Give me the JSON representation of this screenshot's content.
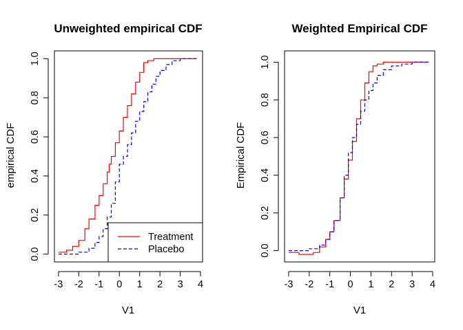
{
  "chart_data": [
    {
      "type": "line",
      "subtype": "step",
      "title": "Unweighted empirical CDF",
      "xlabel": "V1",
      "ylabel": "empirical CDF",
      "xlim": [
        -3.2,
        4.1
      ],
      "ylim": [
        -0.04,
        1.04
      ],
      "x_ticks": [
        "-3",
        "-2",
        "-1",
        "0",
        "1",
        "2",
        "3",
        "4"
      ],
      "y_ticks": [
        "0.0",
        "0.2",
        "0.4",
        "0.6",
        "0.8",
        "1.0"
      ],
      "grid": false,
      "legend": {
        "placement": "bottom-right",
        "entries": [
          {
            "label": "Treatment",
            "color": "#ff0000",
            "dash": "solid"
          },
          {
            "label": "Placebo",
            "color": "#0000ff",
            "dash": "dashed"
          }
        ]
      },
      "series": [
        {
          "name": "Treatment",
          "color": "#ff0000",
          "dash": "solid",
          "x": [
            -3.0,
            -2.6,
            -2.3,
            -2.0,
            -1.7,
            -1.5,
            -1.2,
            -1.0,
            -0.8,
            -0.6,
            -0.5,
            -0.4,
            -0.2,
            0.0,
            0.2,
            0.4,
            0.6,
            0.8,
            1.0,
            1.2,
            1.4,
            1.7,
            2.0,
            3.0,
            3.8
          ],
          "y": [
            0.01,
            0.02,
            0.04,
            0.07,
            0.13,
            0.18,
            0.25,
            0.3,
            0.36,
            0.42,
            0.46,
            0.5,
            0.57,
            0.63,
            0.7,
            0.76,
            0.82,
            0.88,
            0.93,
            0.98,
            0.99,
            1.0,
            1.0,
            1.0,
            1.0
          ]
        },
        {
          "name": "Placebo",
          "color": "#0000ff",
          "dash": "dashed",
          "x": [
            -3.0,
            -2.0,
            -1.5,
            -1.2,
            -1.0,
            -0.8,
            -0.6,
            -0.4,
            -0.2,
            0.0,
            0.2,
            0.4,
            0.6,
            0.8,
            1.0,
            1.2,
            1.4,
            1.6,
            1.8,
            2.0,
            2.3,
            2.6,
            3.0,
            3.5,
            3.8
          ],
          "y": [
            0.0,
            0.01,
            0.03,
            0.06,
            0.09,
            0.13,
            0.19,
            0.26,
            0.37,
            0.46,
            0.5,
            0.56,
            0.62,
            0.68,
            0.73,
            0.78,
            0.83,
            0.87,
            0.91,
            0.94,
            0.97,
            0.99,
            1.0,
            1.0,
            1.0
          ]
        }
      ]
    },
    {
      "type": "line",
      "subtype": "step",
      "title": "Weighted Empirical CDF",
      "xlabel": "V1",
      "ylabel": "Empirical CDF",
      "xlim": [
        -3.2,
        4.1
      ],
      "ylim": [
        -0.06,
        1.06
      ],
      "x_ticks": [
        "-3",
        "-2",
        "-1",
        "0",
        "1",
        "2",
        "3",
        "4"
      ],
      "y_ticks": [
        "0.0",
        "0.2",
        "0.4",
        "0.6",
        "0.8",
        "1.0"
      ],
      "grid": false,
      "series": [
        {
          "name": "Treatment",
          "color": "#ff0000",
          "dash": "solid",
          "x": [
            -3.0,
            -2.5,
            -2.0,
            -1.8,
            -1.5,
            -1.2,
            -1.0,
            -0.8,
            -0.5,
            -0.3,
            -0.1,
            0.1,
            0.3,
            0.5,
            0.7,
            0.9,
            1.1,
            1.3,
            1.6,
            2.0,
            3.0,
            3.8
          ],
          "y": [
            -0.01,
            -0.02,
            -0.02,
            -0.01,
            0.02,
            0.06,
            0.1,
            0.16,
            0.28,
            0.38,
            0.48,
            0.58,
            0.7,
            0.8,
            0.89,
            0.95,
            0.98,
            0.99,
            1.0,
            1.0,
            1.0,
            1.0
          ]
        },
        {
          "name": "Placebo",
          "color": "#0000ff",
          "dash": "dashed",
          "x": [
            -3.0,
            -2.5,
            -2.0,
            -1.5,
            -1.2,
            -1.0,
            -0.8,
            -0.5,
            -0.3,
            -0.1,
            0.1,
            0.3,
            0.5,
            0.7,
            0.9,
            1.1,
            1.3,
            1.6,
            2.0,
            2.5,
            3.0,
            3.8
          ],
          "y": [
            0.0,
            0.0,
            0.01,
            0.03,
            0.06,
            0.1,
            0.16,
            0.28,
            0.4,
            0.52,
            0.6,
            0.67,
            0.74,
            0.8,
            0.85,
            0.89,
            0.93,
            0.96,
            0.98,
            0.99,
            1.0,
            1.0
          ]
        }
      ]
    }
  ]
}
